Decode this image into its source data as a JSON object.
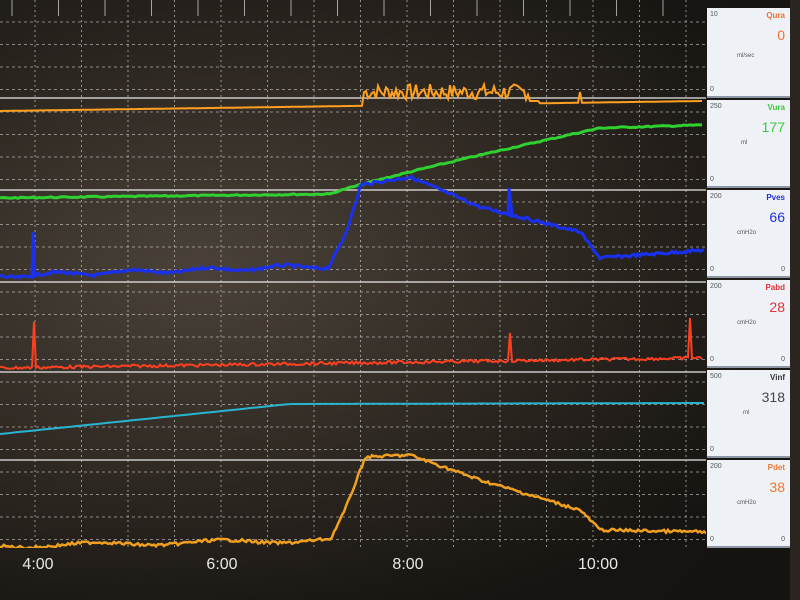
{
  "time_axis": {
    "labels": [
      "4:00",
      "6:00",
      "8:00",
      "10:00"
    ]
  },
  "channels": [
    {
      "id": "qura",
      "name": "Qura",
      "value": "0",
      "unit": "ml/sec",
      "scale_max": "10",
      "scale_min": "0",
      "color": "#f07030",
      "trace_color": "#ffa020"
    },
    {
      "id": "vura",
      "name": "Vura",
      "value": "177",
      "unit": "ml",
      "scale_max": "250",
      "scale_min": "0",
      "color": "#3cc83c",
      "trace_color": "#30d030"
    },
    {
      "id": "pves",
      "name": "Pves",
      "value": "66",
      "unit": "cmH2o",
      "scale_max": "200",
      "scale_min": "0",
      "color": "#2030d8",
      "trace_color": "#1a30ee"
    },
    {
      "id": "pabd",
      "name": "Pabd",
      "value": "28",
      "unit": "cmH2o",
      "scale_max": "200",
      "scale_min": "0",
      "color": "#e0303a",
      "trace_color": "#ff4020"
    },
    {
      "id": "vinf",
      "name": "Vinf",
      "value": "318",
      "unit": "ml",
      "scale_max": "500",
      "scale_min": "0",
      "color": "#333333",
      "trace_color": "#28b4d0"
    },
    {
      "id": "pdet",
      "name": "Pdet",
      "value": "38",
      "unit": "cmH2o",
      "scale_max": "200",
      "scale_min": "0",
      "color": "#f07830",
      "trace_color": "#f0a020"
    }
  ]
}
